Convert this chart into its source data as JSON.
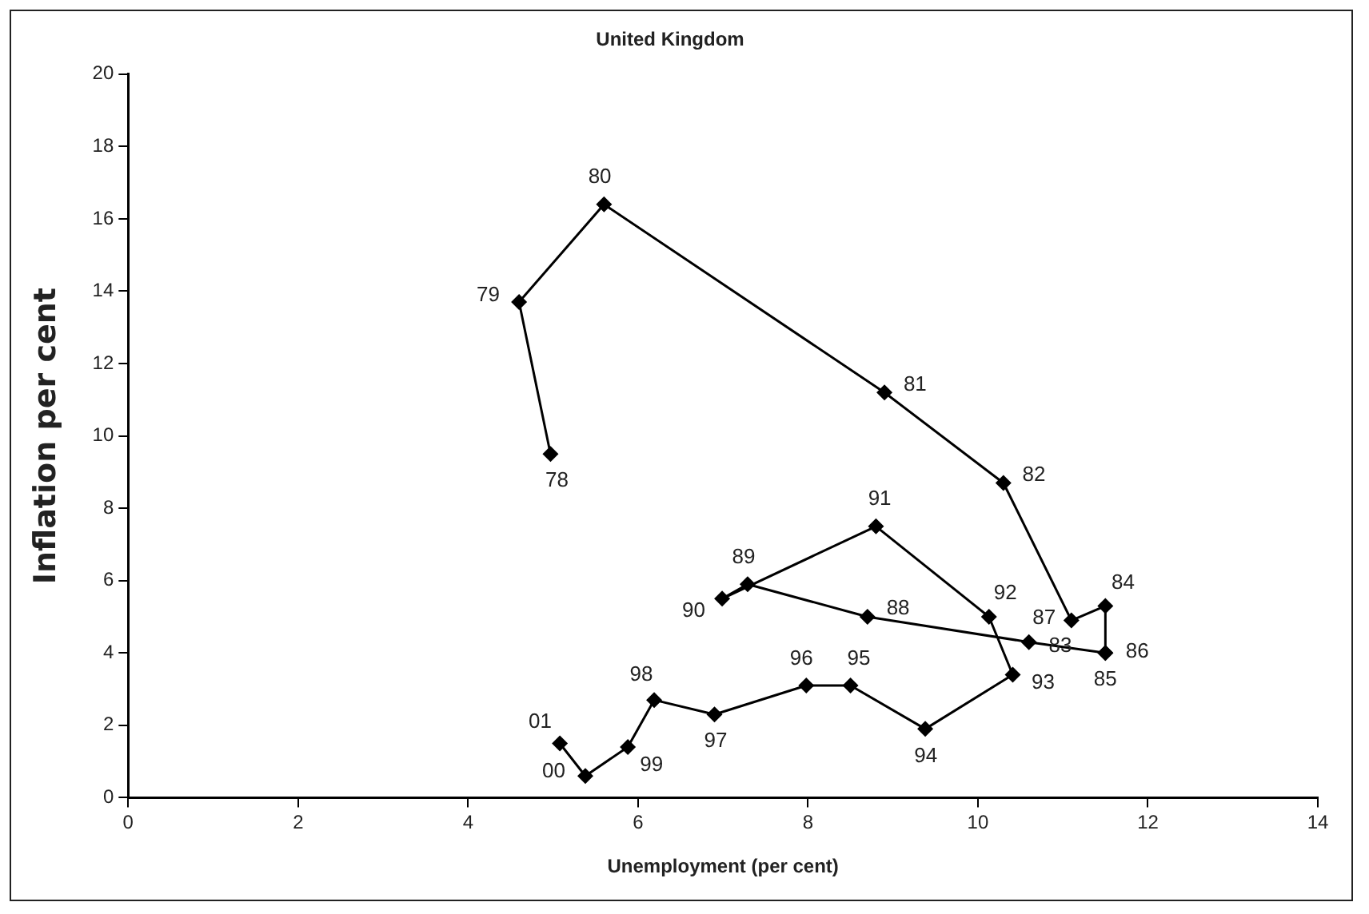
{
  "chart_data": {
    "type": "line",
    "title": "United Kingdom",
    "xlabel": "Unemployment (per cent)",
    "ylabel": "Inflation per cent",
    "x": [
      4.97,
      4.6,
      5.6,
      8.9,
      10.3,
      11.1,
      11.5,
      11.5,
      11.5,
      10.6,
      8.7,
      7.29,
      6.99,
      8.8,
      10.13,
      10.41,
      9.38,
      8.5,
      7.98,
      6.9,
      6.19,
      5.88,
      5.38,
      5.08
    ],
    "series": [
      {
        "color": "#000000",
        "values": [
          9.5,
          13.7,
          16.4,
          11.2,
          8.7,
          4.9,
          5.3,
          4.0,
          4.0,
          4.3,
          5.0,
          5.9,
          5.5,
          7.5,
          5.0,
          3.4,
          1.9,
          3.1,
          3.1,
          2.3,
          2.7,
          1.4,
          0.6,
          1.5
        ]
      }
    ],
    "xlim": [
      0,
      14
    ],
    "xticks": [
      0,
      2,
      4,
      6,
      8,
      10,
      12,
      14
    ],
    "ylim": [
      0,
      20
    ],
    "yticks": [
      0,
      2,
      4,
      6,
      8,
      10,
      12,
      14,
      16,
      18,
      20
    ],
    "grid": false,
    "legend": false,
    "marker": "diamond",
    "line_style": "solid",
    "annotations": [
      {
        "text": "78",
        "x": 4.97,
        "y": 9.5
      },
      {
        "text": "79",
        "x": 4.6,
        "y": 13.7
      },
      {
        "text": "80",
        "x": 5.6,
        "y": 16.4
      },
      {
        "text": "81",
        "x": 8.9,
        "y": 11.2
      },
      {
        "text": "82",
        "x": 10.3,
        "y": 8.7
      },
      {
        "text": "83",
        "x": 11.1,
        "y": 4.9
      },
      {
        "text": "84",
        "x": 11.5,
        "y": 5.3
      },
      {
        "text": "85",
        "x": 11.5,
        "y": 4.0
      },
      {
        "text": "86",
        "x": 11.5,
        "y": 4.0
      },
      {
        "text": "87",
        "x": 10.6,
        "y": 4.3
      },
      {
        "text": "88",
        "x": 8.7,
        "y": 5.0
      },
      {
        "text": "89",
        "x": 7.29,
        "y": 5.9
      },
      {
        "text": "90",
        "x": 6.99,
        "y": 5.5
      },
      {
        "text": "91",
        "x": 8.8,
        "y": 7.5
      },
      {
        "text": "92",
        "x": 10.13,
        "y": 5.0
      },
      {
        "text": "93",
        "x": 10.41,
        "y": 3.4
      },
      {
        "text": "94",
        "x": 9.38,
        "y": 1.9
      },
      {
        "text": "95",
        "x": 8.5,
        "y": 3.1
      },
      {
        "text": "96",
        "x": 7.98,
        "y": 3.1
      },
      {
        "text": "97",
        "x": 6.9,
        "y": 2.3
      },
      {
        "text": "98",
        "x": 6.19,
        "y": 2.7
      },
      {
        "text": "99",
        "x": 5.88,
        "y": 1.4
      },
      {
        "text": "00",
        "x": 5.38,
        "y": 0.6
      },
      {
        "text": "01",
        "x": 5.08,
        "y": 1.5
      }
    ]
  }
}
